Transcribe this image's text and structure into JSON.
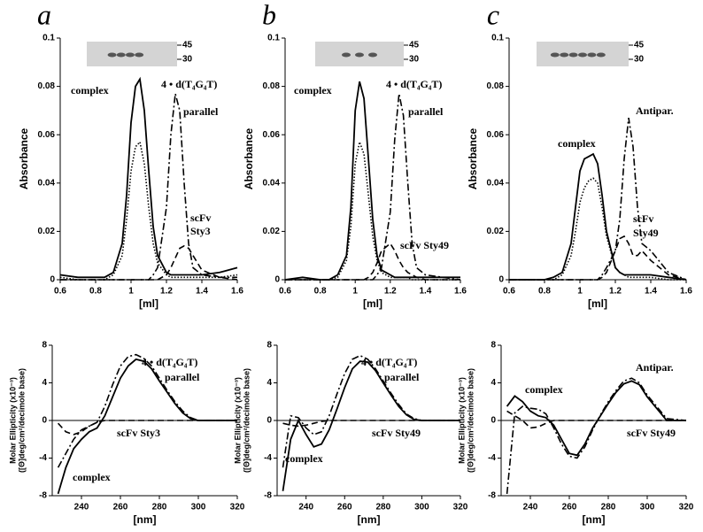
{
  "chart_data": [
    {
      "type": "line",
      "panel_label": "a",
      "xlabel": "[ml]",
      "ylabel": [
        "Absorbance"
      ],
      "xlim": [
        0.6,
        1.6
      ],
      "xticks": [
        0.6,
        0.8,
        1,
        1.2,
        1.4,
        1.6
      ],
      "ylim": [
        0,
        0.1
      ],
      "yticks": [
        0,
        0.02,
        0.04,
        0.06,
        0.08,
        0.1
      ],
      "gel_markers": [
        45,
        30
      ],
      "x": [
        0.6,
        0.7,
        0.8,
        0.85,
        0.9,
        0.95,
        0.975,
        1.0,
        1.025,
        1.05,
        1.075,
        1.1,
        1.125,
        1.15,
        1.2,
        1.225,
        1.25,
        1.275,
        1.3,
        1.325,
        1.35,
        1.4,
        1.5,
        1.6
      ],
      "series": [
        {
          "color": "#000",
          "style": "solid",
          "values": [
            0.002,
            0.001,
            0.001,
            0.001,
            0.003,
            0.015,
            0.035,
            0.065,
            0.08,
            0.083,
            0.07,
            0.045,
            0.022,
            0.01,
            0.003,
            0.002,
            0.002,
            0.002,
            0.002,
            0.002,
            0.002,
            0.002,
            0.003,
            0.005
          ]
        },
        {
          "color": "#000",
          "style": "dotted",
          "values": [
            0.001,
            0,
            0,
            0,
            0.002,
            0.01,
            0.025,
            0.045,
            0.055,
            0.057,
            0.048,
            0.03,
            0.015,
            0.007,
            0.002,
            0.001,
            0.001,
            0.001,
            0.001,
            0.001,
            0.001,
            0.001,
            0.001,
            0.002
          ]
        },
        {
          "color": "#000",
          "style": "dashdot",
          "values": [
            0,
            0,
            0,
            0,
            0,
            0,
            0,
            0,
            0,
            0,
            0,
            0,
            0.002,
            0.005,
            0.03,
            0.06,
            0.077,
            0.07,
            0.04,
            0.015,
            0.005,
            0.002,
            0.001,
            0.001
          ]
        },
        {
          "color": "#000",
          "style": "dashed",
          "values": [
            0,
            0,
            0,
            0,
            0,
            0,
            0,
            0,
            0,
            0,
            0,
            0,
            0,
            0,
            0.002,
            0.005,
            0.009,
            0.013,
            0.014,
            0.013,
            0.01,
            0.004,
            0.001,
            0
          ]
        }
      ],
      "annotations": [
        "complex",
        "4 • d(T₄G₄T)",
        "parallel",
        "scFv",
        "Sty3"
      ]
    },
    {
      "type": "line",
      "panel_label": "b",
      "xlabel": "[ml]",
      "ylabel": [
        "Absorbance"
      ],
      "xlim": [
        0.6,
        1.6
      ],
      "xticks": [
        0.6,
        0.8,
        1,
        1.2,
        1.4,
        1.6
      ],
      "ylim": [
        0,
        0.1
      ],
      "yticks": [
        0,
        0.02,
        0.04,
        0.06,
        0.08,
        0.1
      ],
      "gel_markers": [
        45,
        30
      ],
      "x": [
        0.6,
        0.7,
        0.8,
        0.85,
        0.9,
        0.95,
        0.975,
        1.0,
        1.025,
        1.05,
        1.075,
        1.1,
        1.125,
        1.15,
        1.2,
        1.225,
        1.25,
        1.275,
        1.3,
        1.325,
        1.35,
        1.4,
        1.5,
        1.6
      ],
      "series": [
        {
          "color": "#000",
          "style": "solid",
          "values": [
            0,
            0.001,
            0,
            0,
            0.002,
            0.01,
            0.03,
            0.07,
            0.082,
            0.075,
            0.05,
            0.025,
            0.01,
            0.004,
            0.002,
            0.001,
            0.001,
            0.001,
            0.001,
            0.001,
            0.001,
            0.001,
            0.001,
            0.001
          ]
        },
        {
          "color": "#000",
          "style": "dotted",
          "values": [
            0,
            0,
            0,
            0,
            0.001,
            0.008,
            0.022,
            0.048,
            0.057,
            0.052,
            0.035,
            0.018,
            0.008,
            0.003,
            0.001,
            0.001,
            0.001,
            0.001,
            0.001,
            0,
            0,
            0,
            0,
            0
          ]
        },
        {
          "color": "#000",
          "style": "dashdot",
          "values": [
            0,
            0,
            0,
            0,
            0,
            0,
            0,
            0,
            0,
            0,
            0,
            0,
            0.002,
            0.005,
            0.028,
            0.058,
            0.077,
            0.068,
            0.04,
            0.015,
            0.005,
            0.002,
            0.001,
            0
          ]
        },
        {
          "color": "#000",
          "style": "dashed",
          "values": [
            0,
            0,
            0,
            0,
            0,
            0,
            0,
            0,
            0,
            0,
            0.001,
            0.003,
            0.007,
            0.012,
            0.015,
            0.012,
            0.008,
            0.005,
            0.003,
            0.002,
            0.001,
            0,
            0,
            0
          ]
        }
      ],
      "annotations": [
        "complex",
        "4 • d(T₄G₄T)",
        "parallel",
        "scFv Sty49"
      ]
    },
    {
      "type": "line",
      "panel_label": "c",
      "xlabel": "[ml]",
      "ylabel": [
        "Absorbance"
      ],
      "xlim": [
        0.6,
        1.6
      ],
      "xticks": [
        0.6,
        0.8,
        1,
        1.2,
        1.4,
        1.6
      ],
      "ylim": [
        0,
        0.1
      ],
      "yticks": [
        0,
        0.02,
        0.04,
        0.06,
        0.08,
        0.1
      ],
      "gel_markers": [
        45,
        30
      ],
      "x": [
        0.6,
        0.7,
        0.8,
        0.85,
        0.9,
        0.95,
        0.975,
        1.0,
        1.025,
        1.05,
        1.075,
        1.1,
        1.125,
        1.15,
        1.2,
        1.225,
        1.25,
        1.275,
        1.3,
        1.325,
        1.35,
        1.4,
        1.5,
        1.6
      ],
      "series": [
        {
          "color": "#000",
          "style": "solid",
          "values": [
            0,
            0,
            0,
            0.001,
            0.003,
            0.015,
            0.03,
            0.045,
            0.05,
            0.051,
            0.052,
            0.048,
            0.035,
            0.02,
            0.005,
            0.003,
            0.002,
            0.002,
            0.002,
            0.002,
            0.002,
            0.002,
            0.001,
            0
          ]
        },
        {
          "color": "#000",
          "style": "dotted",
          "values": [
            0,
            0,
            0,
            0,
            0.002,
            0.01,
            0.02,
            0.032,
            0.038,
            0.041,
            0.042,
            0.04,
            0.03,
            0.018,
            0.005,
            0.003,
            0.002,
            0.001,
            0.001,
            0.001,
            0.001,
            0.001,
            0,
            0
          ]
        },
        {
          "color": "#000",
          "style": "dashdot",
          "values": [
            0,
            0,
            0,
            0,
            0,
            0,
            0,
            0,
            0,
            0,
            0,
            0,
            0.002,
            0.005,
            0.012,
            0.025,
            0.05,
            0.067,
            0.055,
            0.03,
            0.015,
            0.012,
            0.003,
            0
          ]
        },
        {
          "color": "#000",
          "style": "dashed",
          "values": [
            0,
            0,
            0,
            0,
            0,
            0,
            0,
            0,
            0,
            0,
            0,
            0,
            0.001,
            0.003,
            0.012,
            0.017,
            0.018,
            0.015,
            0.01,
            0.01,
            0.012,
            0.008,
            0.002,
            0
          ]
        }
      ],
      "annotations": [
        "Antipar.",
        "complex",
        "scFv",
        "Sty49"
      ]
    },
    {
      "type": "line",
      "xlabel": "[nm]",
      "ylabel": [
        "Molar Ellipticity (x10⁻³)",
        "([Θ]deg/cm²/decimole base)"
      ],
      "xlim": [
        225,
        320
      ],
      "xticks": [
        240,
        260,
        280,
        300,
        320
      ],
      "ylim": [
        -8,
        8
      ],
      "yticks": [
        -8,
        -4,
        0,
        4,
        8
      ],
      "zero_line": true,
      "x": [
        228,
        232,
        236,
        240,
        244,
        248,
        252,
        256,
        260,
        264,
        268,
        272,
        276,
        280,
        284,
        288,
        292,
        296,
        300,
        310,
        320
      ],
      "series": [
        {
          "color": "#000",
          "style": "solid",
          "values": [
            -7.8,
            -5,
            -3,
            -2,
            -1.2,
            -0.8,
            0.5,
            2.5,
            4.5,
            5.8,
            6.5,
            6.3,
            5.5,
            4.2,
            3,
            1.8,
            0.8,
            0.2,
            0,
            0,
            0
          ]
        },
        {
          "color": "#000",
          "style": "dashdot",
          "values": [
            -5,
            -3.5,
            -2,
            -1,
            -0.6,
            -0.2,
            1.5,
            3.8,
            5.8,
            6.8,
            7,
            6.6,
            5.8,
            4.5,
            3.2,
            2,
            1,
            0.3,
            0,
            0,
            0
          ]
        },
        {
          "color": "#000",
          "style": "dashed",
          "values": [
            -0.3,
            -1.2,
            -1.5,
            -1.2,
            -0.6,
            -0.2,
            0,
            0,
            0,
            0,
            0,
            0,
            0,
            0,
            0,
            0,
            0,
            0,
            0,
            0,
            0
          ]
        }
      ],
      "annotations": [
        "4 • d(T₄G₄T)",
        "parallel",
        "scFv Sty3",
        "complex"
      ]
    },
    {
      "type": "line",
      "xlabel": "[nm]",
      "ylabel": [
        "Molar Ellipticity (x10⁻³)",
        "([Θ]deg/cm²/decimole base)"
      ],
      "xlim": [
        225,
        320
      ],
      "xticks": [
        240,
        260,
        280,
        300,
        320
      ],
      "ylim": [
        -8,
        8
      ],
      "yticks": [
        -8,
        -4,
        0,
        4,
        8
      ],
      "zero_line": true,
      "x": [
        228,
        232,
        236,
        240,
        244,
        248,
        252,
        256,
        260,
        264,
        268,
        272,
        276,
        280,
        284,
        288,
        292,
        296,
        300,
        310,
        320
      ],
      "series": [
        {
          "color": "#000",
          "style": "solid",
          "values": [
            -7.5,
            -2,
            0,
            -1.5,
            -2.8,
            -2.5,
            -1,
            1.2,
            3.5,
            5.5,
            6.3,
            6.2,
            5.3,
            4,
            2.7,
            1.5,
            0.6,
            0.1,
            0,
            0,
            0
          ]
        },
        {
          "color": "#000",
          "style": "dashdot",
          "values": [
            -5,
            0.5,
            0.3,
            -0.8,
            -1.5,
            -1.2,
            0.5,
            2.8,
            5,
            6.5,
            6.9,
            6.5,
            5.5,
            4.2,
            2.9,
            1.7,
            0.7,
            0.2,
            0,
            0,
            0
          ]
        },
        {
          "color": "#000",
          "style": "dashed",
          "values": [
            -0.3,
            -0.5,
            -0.6,
            -0.5,
            -0.3,
            -0.1,
            0,
            0,
            0,
            0,
            0,
            0,
            0,
            0,
            0,
            0,
            0,
            0,
            0,
            0,
            0
          ]
        }
      ],
      "annotations": [
        "4 • d(T₄G₄T)",
        "parallel",
        "scFv Sty49",
        "complex"
      ]
    },
    {
      "type": "line",
      "xlabel": "[nm]",
      "ylabel": [
        "Molar Ellipticity (x10⁻³)",
        "([Θ]deg/cm²/decimole base)"
      ],
      "xlim": [
        225,
        320
      ],
      "xticks": [
        240,
        260,
        280,
        300,
        320
      ],
      "ylim": [
        -8,
        8
      ],
      "yticks": [
        -8,
        -4,
        0,
        4,
        8
      ],
      "zero_line": true,
      "x": [
        228,
        232,
        236,
        240,
        244,
        248,
        252,
        256,
        260,
        264,
        268,
        272,
        276,
        280,
        284,
        288,
        292,
        296,
        300,
        310,
        320
      ],
      "series": [
        {
          "color": "#000",
          "style": "solid",
          "values": [
            1.5,
            2.6,
            2,
            1,
            0.5,
            0.3,
            -0.5,
            -2,
            -3.5,
            -3.7,
            -2.5,
            -0.8,
            0.5,
            1.8,
            3,
            3.9,
            4.2,
            3.8,
            2.5,
            0,
            0
          ]
        },
        {
          "color": "#000",
          "style": "dashdot",
          "values": [
            -7.8,
            0.8,
            1.5,
            1.3,
            1.2,
            0.7,
            -0.8,
            -2.5,
            -3.8,
            -4,
            -2.8,
            -1,
            0.6,
            2,
            3.2,
            4.2,
            4.5,
            4,
            2.7,
            0.2,
            0
          ]
        },
        {
          "color": "#000",
          "style": "dashed",
          "values": [
            1,
            0.5,
            0,
            -0.8,
            -0.7,
            -0.3,
            0,
            0,
            0,
            0,
            0,
            0,
            0,
            0,
            0,
            0,
            0,
            0,
            0,
            0,
            0
          ]
        }
      ],
      "annotations": [
        "Antipar.",
        "complex",
        "scFv Sty49"
      ]
    }
  ]
}
